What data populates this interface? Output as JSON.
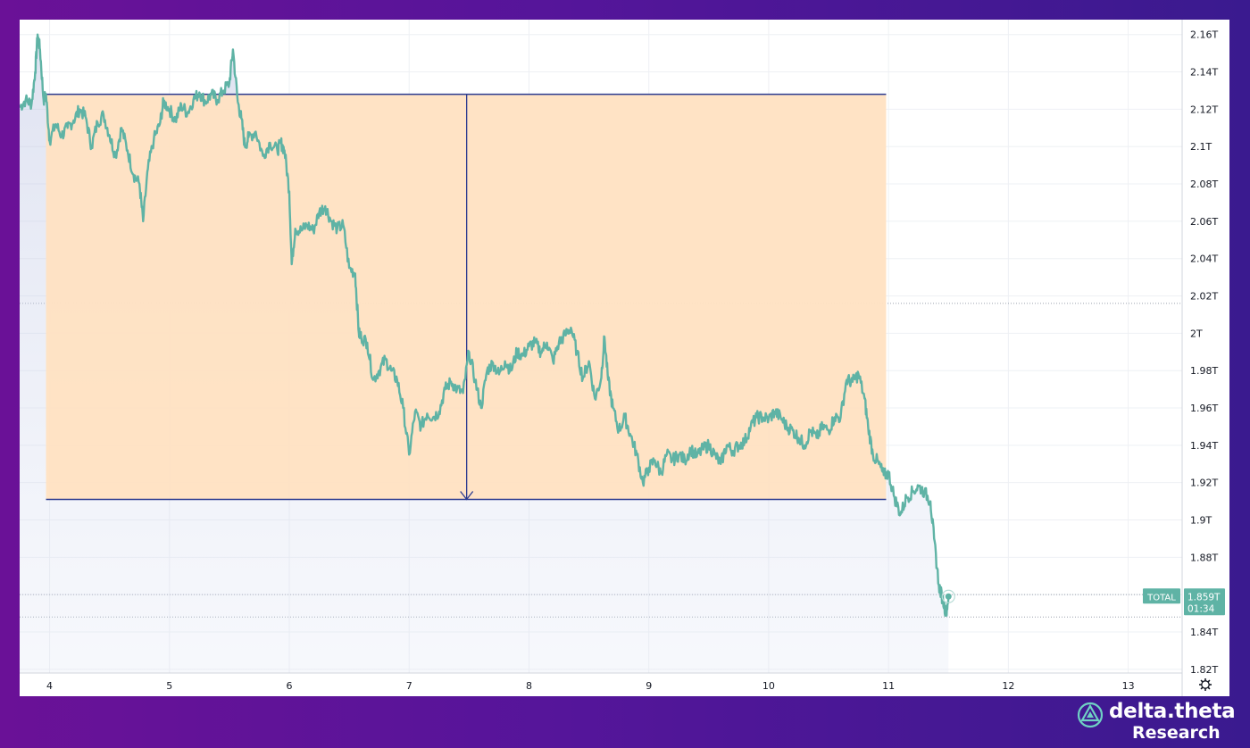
{
  "chart_data": {
    "type": "line",
    "title": "",
    "xlabel": "",
    "ylabel": "",
    "series_name": "TOTAL",
    "last_value_label": "1.859T",
    "countdown": "01:34",
    "x_ticks": [
      "4",
      "5",
      "6",
      "7",
      "8",
      "9",
      "10",
      "11",
      "12",
      "13"
    ],
    "y_ticks": [
      "2.16T",
      "2.14T",
      "2.12T",
      "2.1T",
      "2.08T",
      "2.06T",
      "2.04T",
      "2.02T",
      "2T",
      "1.98T",
      "1.96T",
      "1.94T",
      "1.92T",
      "1.9T",
      "1.88T",
      "1.86T",
      "1.84T",
      "1.82T"
    ],
    "y_tick_values": [
      2.16,
      2.14,
      2.12,
      2.1,
      2.08,
      2.06,
      2.04,
      2.02,
      2.0,
      1.98,
      1.96,
      1.94,
      1.92,
      1.9,
      1.88,
      1.86,
      1.84,
      1.82
    ],
    "x_tick_values": [
      4,
      5,
      6,
      7,
      8,
      9,
      10,
      11,
      12,
      13
    ],
    "xlim": [
      3.75,
      13.45
    ],
    "ylim": [
      1.818,
      2.168
    ],
    "grid": true,
    "line_color": "#5fb3a5",
    "highlight_color": "#ffe2c2",
    "measure_line_color": "#2a3a8f",
    "price_range_box": {
      "x_start": 3.97,
      "x_end": 10.98,
      "y_top": 2.128,
      "y_bottom": 1.911,
      "arrow_x": 7.48
    },
    "dotted_levels": [
      2.016,
      1.86,
      1.848
    ],
    "points": [
      [
        3.75,
        2.121
      ],
      [
        3.8,
        2.125
      ],
      [
        3.85,
        2.123
      ],
      [
        3.88,
        2.14
      ],
      [
        3.9,
        2.16
      ],
      [
        3.92,
        2.152
      ],
      [
        3.95,
        2.125
      ],
      [
        3.97,
        2.128
      ],
      [
        4.0,
        2.103
      ],
      [
        4.05,
        2.112
      ],
      [
        4.1,
        2.106
      ],
      [
        4.15,
        2.11
      ],
      [
        4.2,
        2.114
      ],
      [
        4.25,
        2.12
      ],
      [
        4.3,
        2.116
      ],
      [
        4.35,
        2.1
      ],
      [
        4.4,
        2.113
      ],
      [
        4.45,
        2.117
      ],
      [
        4.5,
        2.106
      ],
      [
        4.55,
        2.095
      ],
      [
        4.6,
        2.11
      ],
      [
        4.65,
        2.098
      ],
      [
        4.7,
        2.085
      ],
      [
        4.75,
        2.08
      ],
      [
        4.78,
        2.06
      ],
      [
        4.82,
        2.088
      ],
      [
        4.87,
        2.104
      ],
      [
        4.92,
        2.112
      ],
      [
        4.95,
        2.124
      ],
      [
        5.0,
        2.12
      ],
      [
        5.05,
        2.114
      ],
      [
        5.1,
        2.122
      ],
      [
        5.15,
        2.118
      ],
      [
        5.2,
        2.125
      ],
      [
        5.25,
        2.129
      ],
      [
        5.3,
        2.124
      ],
      [
        5.35,
        2.128
      ],
      [
        5.4,
        2.125
      ],
      [
        5.45,
        2.13
      ],
      [
        5.5,
        2.134
      ],
      [
        5.53,
        2.152
      ],
      [
        5.57,
        2.124
      ],
      [
        5.6,
        2.115
      ],
      [
        5.63,
        2.1
      ],
      [
        5.66,
        2.105
      ],
      [
        5.72,
        2.108
      ],
      [
        5.78,
        2.095
      ],
      [
        5.84,
        2.102
      ],
      [
        5.9,
        2.098
      ],
      [
        5.93,
        2.102
      ],
      [
        5.96,
        2.098
      ],
      [
        6.0,
        2.076
      ],
      [
        6.02,
        2.037
      ],
      [
        6.05,
        2.056
      ],
      [
        6.1,
        2.055
      ],
      [
        6.15,
        2.058
      ],
      [
        6.2,
        2.055
      ],
      [
        6.25,
        2.065
      ],
      [
        6.3,
        2.068
      ],
      [
        6.35,
        2.06
      ],
      [
        6.4,
        2.056
      ],
      [
        6.45,
        2.058
      ],
      [
        6.5,
        2.035
      ],
      [
        6.55,
        2.032
      ],
      [
        6.58,
        2.0
      ],
      [
        6.6,
        1.998
      ],
      [
        6.65,
        1.995
      ],
      [
        6.7,
        1.975
      ],
      [
        6.75,
        1.98
      ],
      [
        6.8,
        1.986
      ],
      [
        6.85,
        1.98
      ],
      [
        6.9,
        1.975
      ],
      [
        6.95,
        1.96
      ],
      [
        7.0,
        1.935
      ],
      [
        7.05,
        1.958
      ],
      [
        7.1,
        1.95
      ],
      [
        7.15,
        1.957
      ],
      [
        7.2,
        1.955
      ],
      [
        7.25,
        1.958
      ],
      [
        7.3,
        1.97
      ],
      [
        7.35,
        1.974
      ],
      [
        7.4,
        1.97
      ],
      [
        7.45,
        1.968
      ],
      [
        7.5,
        1.99
      ],
      [
        7.55,
        1.975
      ],
      [
        7.6,
        1.96
      ],
      [
        7.65,
        1.98
      ],
      [
        7.7,
        1.984
      ],
      [
        7.75,
        1.978
      ],
      [
        7.8,
        1.985
      ],
      [
        7.85,
        1.98
      ],
      [
        7.9,
        1.99
      ],
      [
        7.95,
        1.988
      ],
      [
        8.0,
        1.993
      ],
      [
        8.05,
        1.995
      ],
      [
        8.1,
        1.99
      ],
      [
        8.15,
        1.995
      ],
      [
        8.2,
        1.985
      ],
      [
        8.25,
        1.995
      ],
      [
        8.3,
        1.999
      ],
      [
        8.35,
        2.003
      ],
      [
        8.4,
        1.99
      ],
      [
        8.45,
        1.976
      ],
      [
        8.5,
        1.985
      ],
      [
        8.55,
        1.965
      ],
      [
        8.6,
        1.975
      ],
      [
        8.63,
        1.998
      ],
      [
        8.66,
        1.975
      ],
      [
        8.7,
        1.96
      ],
      [
        8.75,
        1.948
      ],
      [
        8.8,
        1.955
      ],
      [
        8.85,
        1.945
      ],
      [
        8.9,
        1.935
      ],
      [
        8.95,
        1.92
      ],
      [
        9.0,
        1.928
      ],
      [
        9.05,
        1.932
      ],
      [
        9.1,
        1.925
      ],
      [
        9.15,
        1.935
      ],
      [
        9.2,
        1.932
      ],
      [
        9.25,
        1.935
      ],
      [
        9.3,
        1.932
      ],
      [
        9.35,
        1.938
      ],
      [
        9.4,
        1.934
      ],
      [
        9.45,
        1.938
      ],
      [
        9.5,
        1.94
      ],
      [
        9.55,
        1.935
      ],
      [
        9.6,
        1.93
      ],
      [
        9.65,
        1.94
      ],
      [
        9.7,
        1.937
      ],
      [
        9.75,
        1.94
      ],
      [
        9.8,
        1.942
      ],
      [
        9.85,
        1.95
      ],
      [
        9.9,
        1.955
      ],
      [
        9.95,
        1.955
      ],
      [
        10.0,
        1.954
      ],
      [
        10.05,
        1.958
      ],
      [
        10.1,
        1.955
      ],
      [
        10.15,
        1.95
      ],
      [
        10.2,
        1.948
      ],
      [
        10.25,
        1.944
      ],
      [
        10.3,
        1.94
      ],
      [
        10.35,
        1.948
      ],
      [
        10.4,
        1.944
      ],
      [
        10.45,
        1.95
      ],
      [
        10.5,
        1.948
      ],
      [
        10.55,
        1.955
      ],
      [
        10.6,
        1.955
      ],
      [
        10.65,
        1.975
      ],
      [
        10.7,
        1.974
      ],
      [
        10.75,
        1.978
      ],
      [
        10.8,
        1.965
      ],
      [
        10.83,
        1.95
      ],
      [
        10.87,
        1.935
      ],
      [
        10.92,
        1.93
      ],
      [
        10.96,
        1.924
      ],
      [
        11.0,
        1.925
      ],
      [
        11.05,
        1.912
      ],
      [
        11.1,
        1.903
      ],
      [
        11.15,
        1.912
      ],
      [
        11.2,
        1.915
      ],
      [
        11.25,
        1.918
      ],
      [
        11.3,
        1.915
      ],
      [
        11.35,
        1.91
      ],
      [
        11.38,
        1.89
      ],
      [
        11.42,
        1.865
      ],
      [
        11.45,
        1.858
      ],
      [
        11.48,
        1.85
      ],
      [
        11.5,
        1.859
      ]
    ]
  },
  "brand": {
    "name": "delta.theta",
    "subtitle": "Research"
  },
  "settings_icon": "gear-icon",
  "colors": {
    "background_start": "#6a1197",
    "background_end": "#3a1a8f",
    "label_bg": "#5fb3a5"
  }
}
